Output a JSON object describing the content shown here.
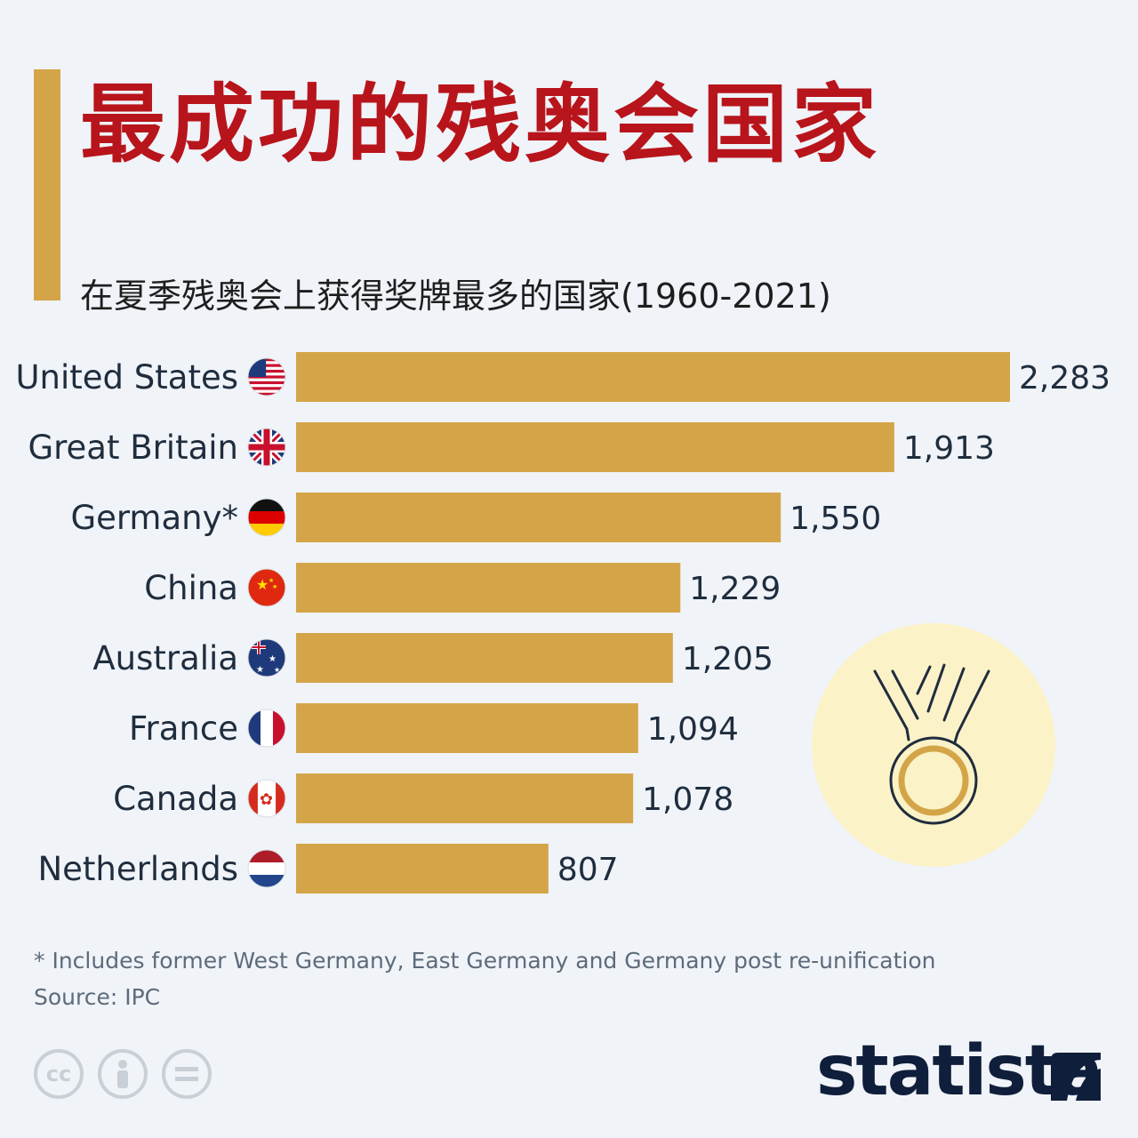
{
  "colors": {
    "accent": "#d4a548",
    "title": "#b7151b",
    "badge_bg": "#fbf2c7"
  },
  "header": {
    "title": "最成功的残奥会国家",
    "subtitle": "在夏季残奥会上获得奖牌最多的国家(1960-2021)"
  },
  "chart_data": {
    "type": "bar",
    "orientation": "horizontal",
    "title": "最成功的残奥会国家",
    "subtitle": "在夏季残奥会上获得奖牌最多的国家(1960-2021)",
    "categories": [
      "United States",
      "Great Britain",
      "Germany*",
      "China",
      "Australia",
      "France",
      "Canada",
      "Netherlands"
    ],
    "values": [
      2283,
      1913,
      1550,
      1229,
      1205,
      1094,
      1078,
      807
    ],
    "value_labels": [
      "2,283",
      "1,913",
      "1,550",
      "1,229",
      "1,205",
      "1,094",
      "1,078",
      "807"
    ],
    "flags": [
      "us-flag-icon",
      "gb-flag-icon",
      "de-flag-icon",
      "cn-flag-icon",
      "au-flag-icon",
      "fr-flag-icon",
      "ca-flag-icon",
      "nl-flag-icon"
    ],
    "xlim": [
      0,
      2283
    ],
    "grid": false,
    "legend": "none"
  },
  "footer": {
    "footnote": "* Includes former West Germany, East Germany and Germany post re-unification",
    "source": "Source: IPC",
    "logo": "statista",
    "license_icons": [
      "cc-icon",
      "attribution-icon",
      "no-derivatives-icon"
    ]
  }
}
